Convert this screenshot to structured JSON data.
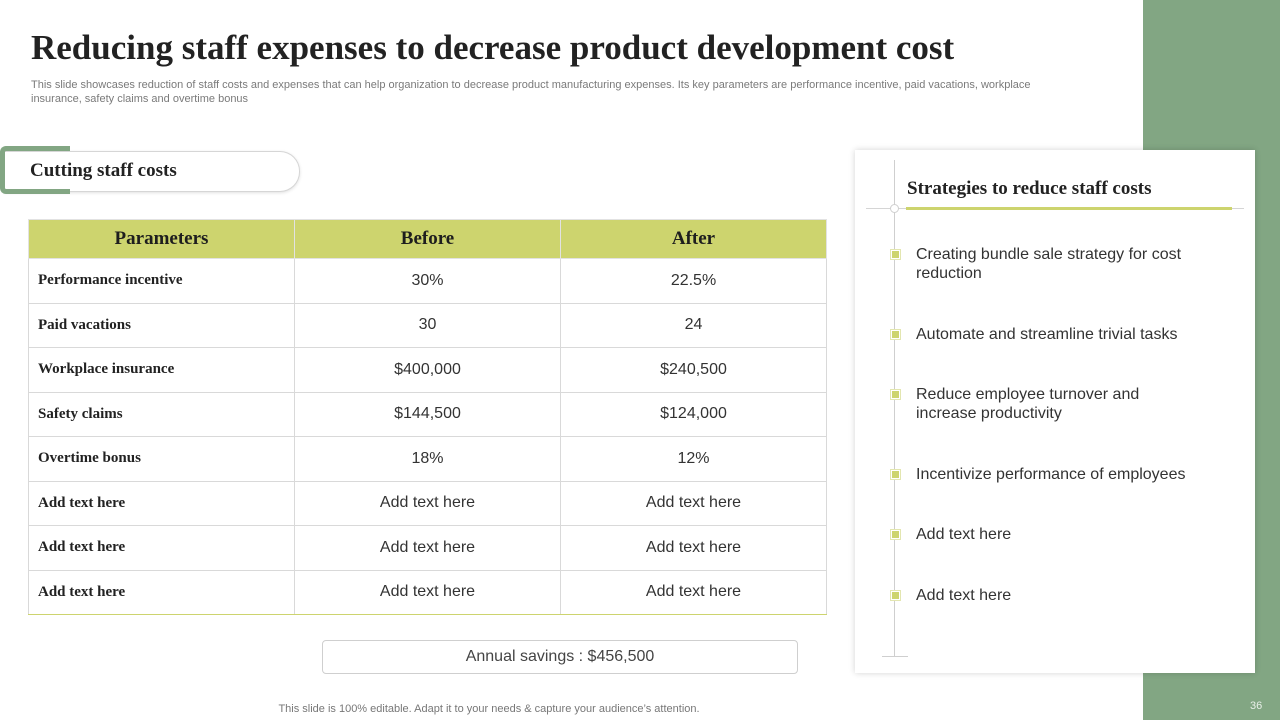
{
  "slide": {
    "title": "Reducing staff expenses to decrease product development  cost",
    "subtitle": "This slide showcases reduction of staff costs and expenses that can help organization to decrease product manufacturing expenses. Its key parameters are performance incentive, paid vacations, workplace insurance, safety claims and overtime bonus",
    "footer": "This slide is 100% editable. Adapt it to your needs & capture your audience’s attention.",
    "page_number": "36"
  },
  "section": {
    "label": "Cutting staff costs"
  },
  "table": {
    "headers": [
      "Parameters",
      "Before",
      "After"
    ],
    "rows": [
      [
        "Performance  incentive",
        "30%",
        "22.5%"
      ],
      [
        "Paid vacations",
        "30",
        "24"
      ],
      [
        "Workplace  insurance",
        "$400,000",
        "$240,500"
      ],
      [
        "Safety claims",
        "$144,500",
        "$124,000"
      ],
      [
        "Overtime  bonus",
        "18%",
        "12%"
      ],
      [
        "Add  text here",
        "Add text here",
        "Add text here"
      ],
      [
        "Add  text here",
        "Add text here",
        "Add text here"
      ],
      [
        "Add  text here",
        "Add text here",
        "Add text here"
      ]
    ]
  },
  "savings": {
    "text": "Annual  savings : $456,500"
  },
  "strategies": {
    "title": "Strategies to reduce staff costs",
    "items": [
      "Creating bundle sale strategy for cost reduction",
      "Automate and streamline trivial tasks",
      "Reduce employee turnover  and increase productivity",
      "Incentivize  performance of employees",
      "Add text here",
      "Add text here"
    ]
  },
  "colors": {
    "accent": "#82a683",
    "highlight": "#cdd46e",
    "text": "#222222"
  }
}
